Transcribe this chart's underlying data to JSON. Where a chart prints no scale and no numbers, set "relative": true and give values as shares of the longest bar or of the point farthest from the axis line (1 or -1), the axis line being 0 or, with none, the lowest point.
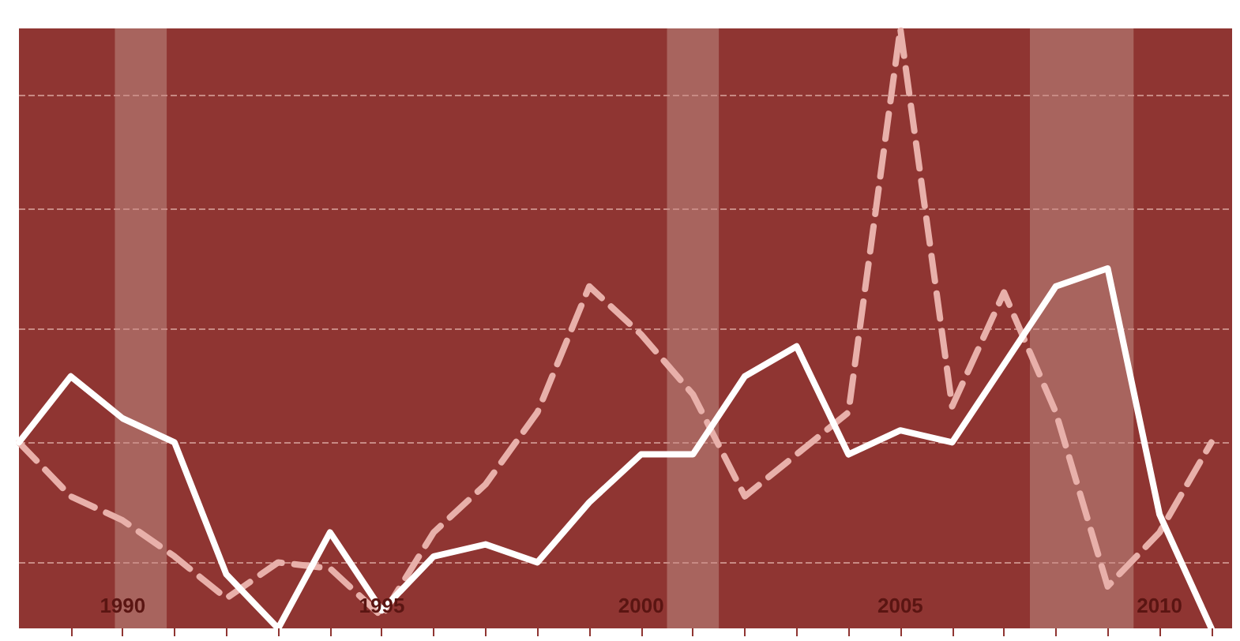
{
  "chart_data": {
    "type": "line",
    "relative": true,
    "x": [
      1988,
      1989,
      1990,
      1991,
      1992,
      1993,
      1994,
      1995,
      1996,
      1997,
      1998,
      1999,
      2000,
      2001,
      2002,
      2003,
      2004,
      2005,
      2006,
      2007,
      2008,
      2009,
      2010,
      2011
    ],
    "series": [
      {
        "color": "#ffffff",
        "line_style": "solid",
        "values": [
          0.31,
          0.42,
          0.35,
          0.31,
          0.09,
          0,
          0.16,
          0.03,
          0.12,
          0.14,
          0.11,
          0.21,
          0.29,
          0.29,
          0.42,
          0.47,
          0.29,
          0.33,
          0.31,
          0.44,
          0.57,
          0.6,
          0.19,
          0
        ]
      },
      {
        "color": "#e8b0aa",
        "line_style": "dashed",
        "values": [
          0.31,
          0.22,
          0.18,
          0.12,
          0.05,
          0.11,
          0.1,
          0.02,
          0.16,
          0.24,
          0.36,
          0.57,
          0.49,
          0.39,
          0.22,
          0.29,
          0.36,
          1,
          0.37,
          0.56,
          0.36,
          0.07,
          0.16,
          0.31
        ]
      }
    ],
    "xlim": [
      1988,
      2011.4
    ],
    "xticks": [
      {
        "value": 1989,
        "label": null
      },
      1990,
      {
        "value": 1991,
        "label": null
      },
      {
        "value": 1992,
        "label": null
      },
      {
        "value": 1993,
        "label": null
      },
      {
        "value": 1994,
        "label": null
      },
      1995,
      {
        "value": 1996,
        "label": null
      },
      {
        "value": 1997,
        "label": null
      },
      {
        "value": 1998,
        "label": null
      },
      {
        "value": 1999,
        "label": null
      },
      2000,
      {
        "value": 2001,
        "label": null
      },
      {
        "value": 2002,
        "label": null
      },
      {
        "value": 2003,
        "label": null
      },
      {
        "value": 2004,
        "label": null
      },
      2005,
      {
        "value": 2006,
        "label": null
      },
      {
        "value": 2007,
        "label": null
      },
      {
        "value": 2008,
        "label": null
      },
      {
        "value": 2009,
        "label": null
      },
      2010,
      {
        "value": 2011,
        "label": null
      }
    ],
    "bands": [
      {
        "axis": "x",
        "from": 1989.85,
        "to": 1990.85,
        "color": "#a8645e"
      },
      {
        "axis": "x",
        "from": 2000.5,
        "to": 2001.5,
        "color": "#a8645e"
      },
      {
        "axis": "x",
        "from": 2007.5,
        "to": 2009.5,
        "color": "#a8645e"
      }
    ],
    "ref_lines": [
      {
        "axis": "y",
        "value": 0.11,
        "color": "#c88a84",
        "line_style": "dashed"
      },
      {
        "axis": "y",
        "value": 0.31,
        "color": "#c88a84",
        "line_style": "dashed"
      },
      {
        "axis": "y",
        "value": 0.5,
        "color": "#c88a84",
        "line_style": "dashed"
      },
      {
        "axis": "y",
        "value": 0.7,
        "color": "#c88a84",
        "line_style": "dashed"
      },
      {
        "axis": "y",
        "value": 0.89,
        "color": "#c88a84",
        "line_style": "dashed"
      }
    ],
    "marker": "none"
  }
}
